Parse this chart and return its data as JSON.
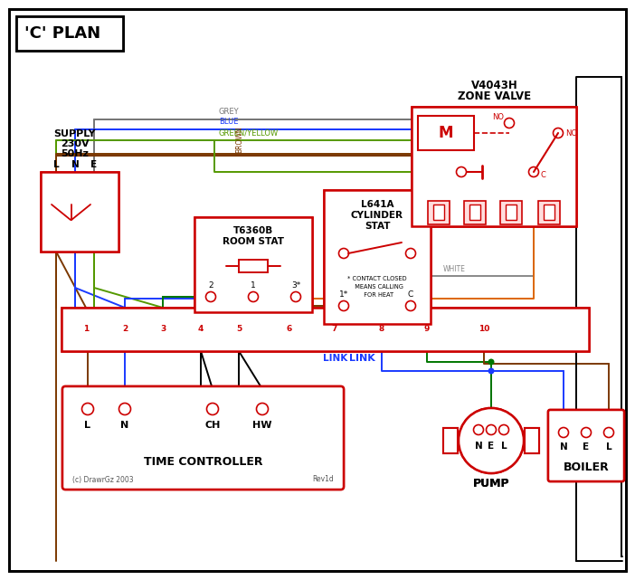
{
  "bg": "#ffffff",
  "red": "#cc0000",
  "blue": "#1a3aff",
  "green": "#007700",
  "grey": "#777777",
  "brown": "#7B3800",
  "orange": "#dd6600",
  "black": "#000000",
  "gy_gr": "#559900",
  "title": "'C' PLAN",
  "zone_valve_1": "V4043H",
  "zone_valve_2": "ZONE VALVE",
  "room_stat_1": "T6360B",
  "room_stat_2": "ROOM STAT",
  "cyl_stat_1": "L641A",
  "cyl_stat_2": "CYLINDER",
  "cyl_stat_3": "STAT",
  "supply_1": "SUPPLY",
  "supply_2": "230V",
  "supply_3": "50Hz",
  "tc_label": "TIME CONTROLLER",
  "pump_label": "PUMP",
  "boiler_label": "BOILER",
  "link_label": "LINK",
  "footnote_1": "* CONTACT CLOSED",
  "footnote_2": "  MEANS CALLING",
  "footnote_3": "  FOR HEAT",
  "copyright": "(c) DrawrGz 2003",
  "rev": "Rev1d",
  "lne": [
    "L",
    "N",
    "E"
  ]
}
